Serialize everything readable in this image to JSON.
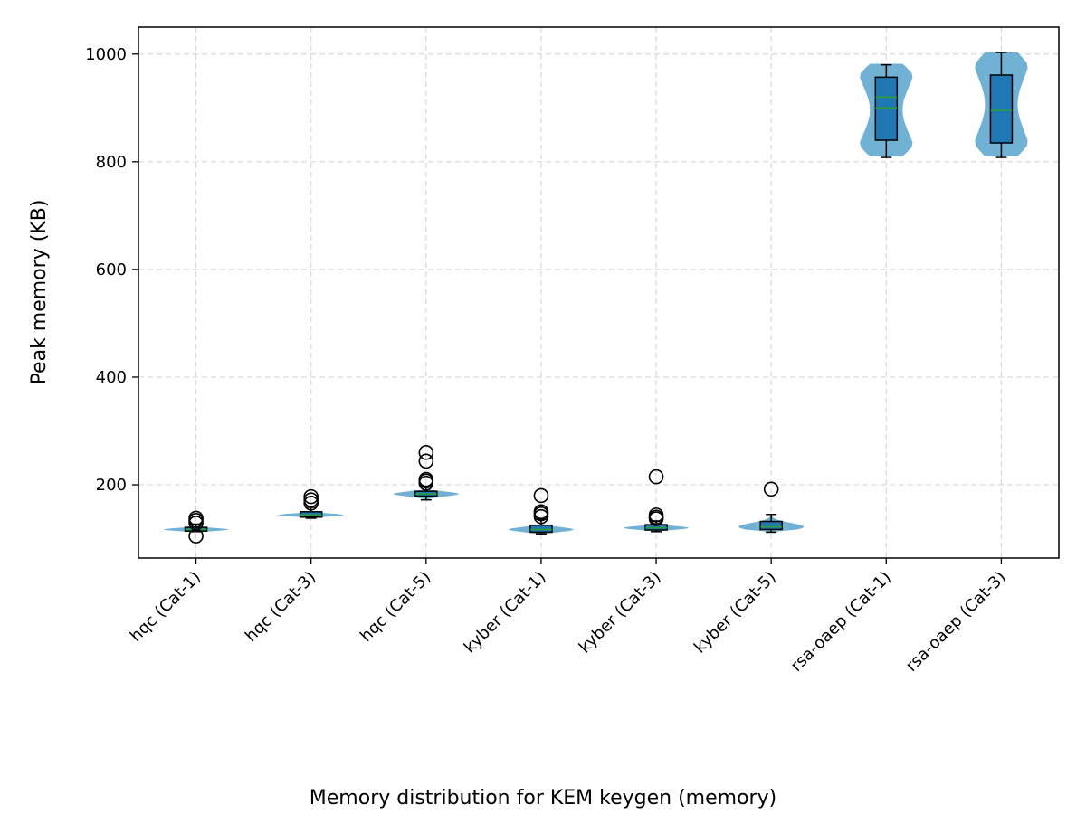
{
  "chart_data": {
    "type": "box",
    "style": "violin with box overlay",
    "ylabel": "Peak memory (KB)",
    "xlabel": "Memory distribution for KEM keygen (memory)",
    "ylim": [
      64,
      1050
    ],
    "yticks": [
      200,
      400,
      600,
      800,
      1000
    ],
    "grid": true,
    "colors": {
      "violin": "#4c9dc9",
      "box": "#1f77b4",
      "median": "#2ca02c",
      "edge": "#000000"
    },
    "categories": [
      "hqc (Cat-1)",
      "hqc (Cat-3)",
      "hqc (Cat-5)",
      "kyber (Cat-1)",
      "kyber (Cat-3)",
      "kyber (Cat-5)",
      "rsa-oaep (Cat-1)",
      "rsa-oaep (Cat-3)"
    ],
    "boxes": [
      {
        "label": "hqc (Cat-1)",
        "whisker_low": 113,
        "q1": 114,
        "median": 117,
        "q3": 121,
        "whisker_high": 127,
        "violin_min": 112,
        "violin_max": 124,
        "outliers": [
          105,
          129,
          134,
          138
        ]
      },
      {
        "label": "hqc (Cat-3)",
        "whisker_low": 138,
        "q1": 140,
        "median": 144,
        "q3": 150,
        "whisker_high": 158,
        "violin_min": 138,
        "violin_max": 150,
        "outliers": [
          166,
          172,
          178
        ]
      },
      {
        "label": "hqc (Cat-5)",
        "whisker_low": 172,
        "q1": 179,
        "median": 183,
        "q3": 188,
        "whisker_high": 196,
        "violin_min": 172,
        "violin_max": 192,
        "outliers": [
          203,
          207,
          210,
          244,
          260
        ]
      },
      {
        "label": "kyber (Cat-1)",
        "whisker_low": 109,
        "q1": 112,
        "median": 117,
        "q3": 125,
        "whisker_high": 136,
        "violin_min": 108,
        "violin_max": 128,
        "outliers": [
          141,
          146,
          150,
          180
        ]
      },
      {
        "label": "kyber (Cat-3)",
        "whisker_low": 113,
        "q1": 116,
        "median": 120,
        "q3": 126,
        "whisker_high": 133,
        "violin_min": 113,
        "violin_max": 128,
        "outliers": [
          137,
          140,
          144,
          215
        ]
      },
      {
        "label": "kyber (Cat-5)",
        "whisker_low": 112,
        "q1": 117,
        "median": 122,
        "q3": 132,
        "whisker_high": 145,
        "violin_min": 112,
        "violin_max": 145,
        "outliers": [
          192
        ]
      },
      {
        "label": "rsa-oaep (Cat-1)",
        "whisker_low": 808,
        "q1": 840,
        "median": 900,
        "q3": 957,
        "whisker_high": 980,
        "violin_min": 810,
        "violin_max": 982,
        "mean": 920,
        "outliers": []
      },
      {
        "label": "rsa-oaep (Cat-3)",
        "whisker_low": 808,
        "q1": 835,
        "median": 895,
        "q3": 961,
        "whisker_high": 1003,
        "violin_min": 810,
        "violin_max": 1003,
        "outliers": []
      }
    ]
  }
}
